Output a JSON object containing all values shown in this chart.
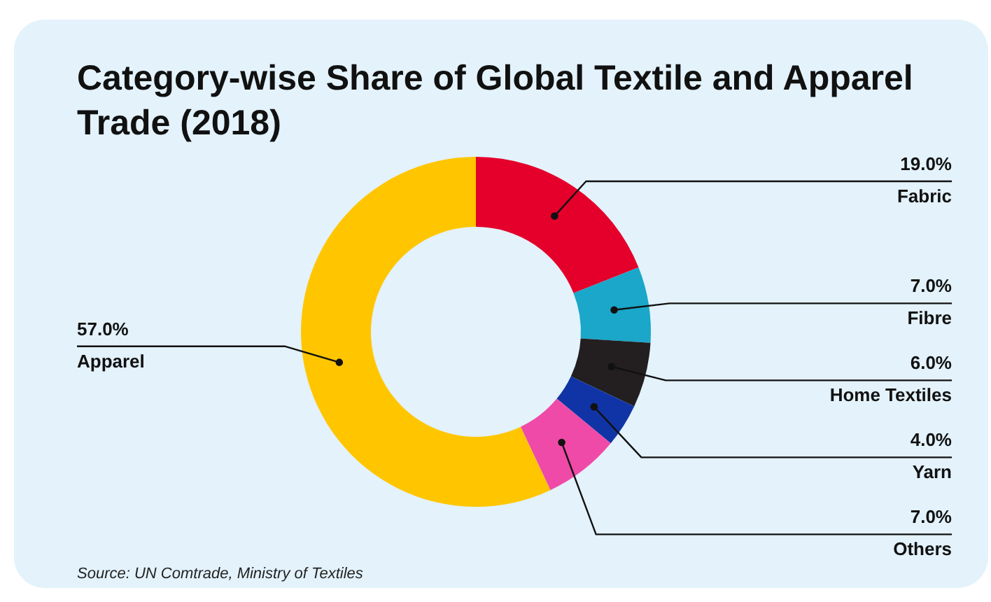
{
  "chart_data": {
    "type": "donut",
    "title": "Category-wise Share of Global Textile and Apparel Trade (2018)",
    "categories": [
      "Fabric",
      "Fibre",
      "Home Textiles",
      "Yarn",
      "Others",
      "Apparel"
    ],
    "values": [
      19.0,
      7.0,
      6.0,
      4.0,
      7.0,
      57.0
    ],
    "colors": [
      "#e4002b",
      "#1aa7c9",
      "#231f20",
      "#1034a6",
      "#ef4aa8",
      "#ffc600"
    ],
    "value_labels": [
      "19.0%",
      "7.0%",
      "6.0%",
      "4.0%",
      "7.0%",
      "57.0%"
    ],
    "annotations": [
      "Source: UN Comtrade, Ministry of Textiles"
    ]
  }
}
